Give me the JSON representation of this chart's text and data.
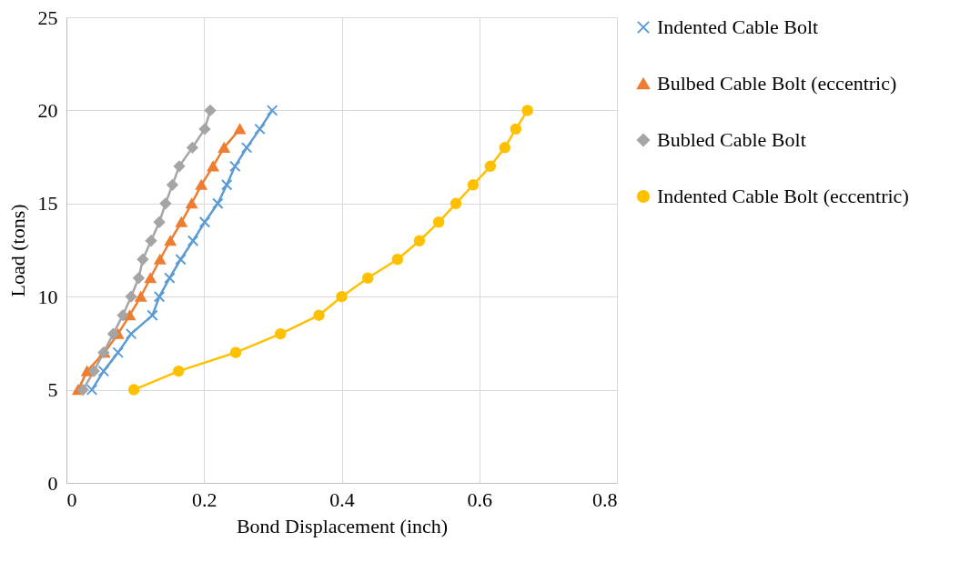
{
  "chart_data": {
    "type": "line",
    "xlabel": "Bond Displacement (inch)",
    "ylabel": "Load (tons)",
    "xlim": [
      0,
      0.8
    ],
    "xticks": [
      0,
      0.2,
      0.4,
      0.6,
      0.8
    ],
    "ylim": [
      0,
      25
    ],
    "yticks": [
      0,
      5,
      10,
      15,
      20,
      25
    ],
    "grid": true,
    "legend": "right",
    "line_style": "solid",
    "series": [
      {
        "name": "Indented Cable Bolt",
        "color": "#5b9bd5",
        "marker": "cross",
        "x": [
          0.037,
          0.054,
          0.075,
          0.094,
          0.125,
          0.135,
          0.15,
          0.166,
          0.184,
          0.201,
          0.22,
          0.233,
          0.245,
          0.262,
          0.281,
          0.299
        ],
        "values": [
          5,
          6,
          7,
          8,
          9,
          10,
          11,
          12,
          13,
          14,
          15,
          16,
          17,
          18,
          19,
          20
        ]
      },
      {
        "name": "Bulbed Cable Bolt (eccentric)",
        "color": "#ed7d31",
        "marker": "triangle",
        "x": [
          0.017,
          0.03,
          0.055,
          0.075,
          0.092,
          0.108,
          0.122,
          0.136,
          0.151,
          0.167,
          0.182,
          0.196,
          0.213,
          0.229,
          0.252
        ],
        "values": [
          5,
          6,
          7,
          8,
          9,
          10,
          11,
          12,
          13,
          14,
          15,
          16,
          17,
          18,
          19
        ]
      },
      {
        "name": "Bubled Cable Bolt",
        "color": "#a5a5a5",
        "marker": "diamond",
        "x": [
          0.024,
          0.04,
          0.054,
          0.068,
          0.082,
          0.094,
          0.105,
          0.111,
          0.123,
          0.135,
          0.144,
          0.154,
          0.164,
          0.183,
          0.201,
          0.209
        ],
        "values": [
          5,
          6,
          7,
          8,
          9,
          10,
          11,
          12,
          13,
          14,
          15,
          16,
          17,
          18,
          19,
          20
        ]
      },
      {
        "name": "Indented Cable Bolt (eccentric)",
        "color": "#ffc000",
        "marker": "circle",
        "x": [
          0.098,
          0.163,
          0.246,
          0.311,
          0.367,
          0.4,
          0.438,
          0.481,
          0.513,
          0.541,
          0.566,
          0.591,
          0.616,
          0.637,
          0.653,
          0.67
        ],
        "values": [
          5,
          6,
          7,
          8,
          9,
          10,
          11,
          12,
          13,
          14,
          15,
          16,
          17,
          18,
          19,
          20
        ]
      }
    ]
  }
}
